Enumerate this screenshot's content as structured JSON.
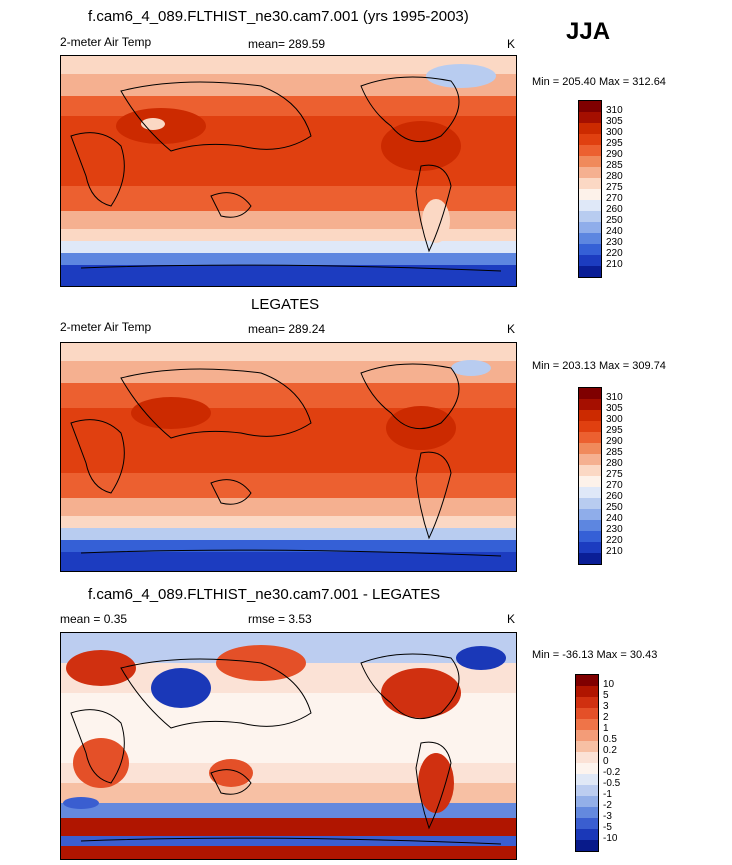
{
  "season": "JJA",
  "panels": [
    {
      "title": "f.cam6_4_089.FLTHIST_ne30.cam7.001 (yrs 1995-2003)",
      "left": "2-meter Air Temp",
      "center": "mean= 289.59",
      "right": "K",
      "minmax": "Min = 205.40 Max = 312.64",
      "levels": [
        "310",
        "305",
        "300",
        "295",
        "290",
        "285",
        "280",
        "275",
        "270",
        "260",
        "250",
        "240",
        "230",
        "220",
        "210"
      ],
      "colors": [
        "#7f0000",
        "#a50f00",
        "#cc2a00",
        "#e04010",
        "#ec6030",
        "#f08a5c",
        "#f5b090",
        "#fbd8c4",
        "#fdf2ea",
        "#dfe8f8",
        "#b8ccf0",
        "#8fadea",
        "#5d86e0",
        "#3560d6",
        "#1c3cc0",
        "#0a1e96"
      ]
    },
    {
      "title": "LEGATES",
      "left": "2-meter Air Temp",
      "center": "mean= 289.24",
      "right": "K",
      "minmax": "Min = 203.13 Max = 309.74",
      "levels": [
        "310",
        "305",
        "300",
        "295",
        "290",
        "285",
        "280",
        "275",
        "270",
        "260",
        "250",
        "240",
        "230",
        "220",
        "210"
      ],
      "colors": [
        "#7f0000",
        "#a50f00",
        "#cc2a00",
        "#e04010",
        "#ec6030",
        "#f08a5c",
        "#f5b090",
        "#fbd8c4",
        "#fdf2ea",
        "#dfe8f8",
        "#b8ccf0",
        "#8fadea",
        "#5d86e0",
        "#3560d6",
        "#1c3cc0",
        "#0a1e96"
      ]
    },
    {
      "title": "f.cam6_4_089.FLTHIST_ne30.cam7.001 - LEGATES",
      "left": "mean =   0.35",
      "center": "rmse =   3.53",
      "right": "K",
      "minmax": "Min = -36.13 Max =  30.43",
      "levels": [
        "10",
        "5",
        "3",
        "2",
        "1",
        "0.5",
        "0.2",
        "0",
        "-0.2",
        "-0.5",
        "-1",
        "-2",
        "-3",
        "-5",
        "-10"
      ],
      "colors": [
        "#7f0000",
        "#b01500",
        "#d03010",
        "#e45028",
        "#ef7448",
        "#f39c78",
        "#f7c0a4",
        "#fbe2d6",
        "#fdf4ee",
        "#e0e8f6",
        "#bccdf0",
        "#93afe8",
        "#6489de",
        "#3a5ed0",
        "#1a38b8",
        "#081a8a"
      ]
    }
  ]
}
